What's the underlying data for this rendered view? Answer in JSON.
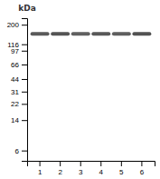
{
  "chart_data": {
    "type": "gel",
    "y_label": "kDa",
    "categories": [
      "1",
      "2",
      "3",
      "4",
      "5",
      "6"
    ],
    "values": [
      155,
      155,
      155,
      155,
      155,
      155
    ],
    "colors": [
      "#5a5a5a",
      "#545454",
      "#606060",
      "#585858",
      "#5e5e5e",
      "#525252"
    ],
    "ylim": [
      4.5,
      240
    ],
    "yticks": [
      200,
      116,
      97,
      66,
      44,
      31,
      22,
      14,
      6
    ],
    "log": "y",
    "grid": false
  }
}
